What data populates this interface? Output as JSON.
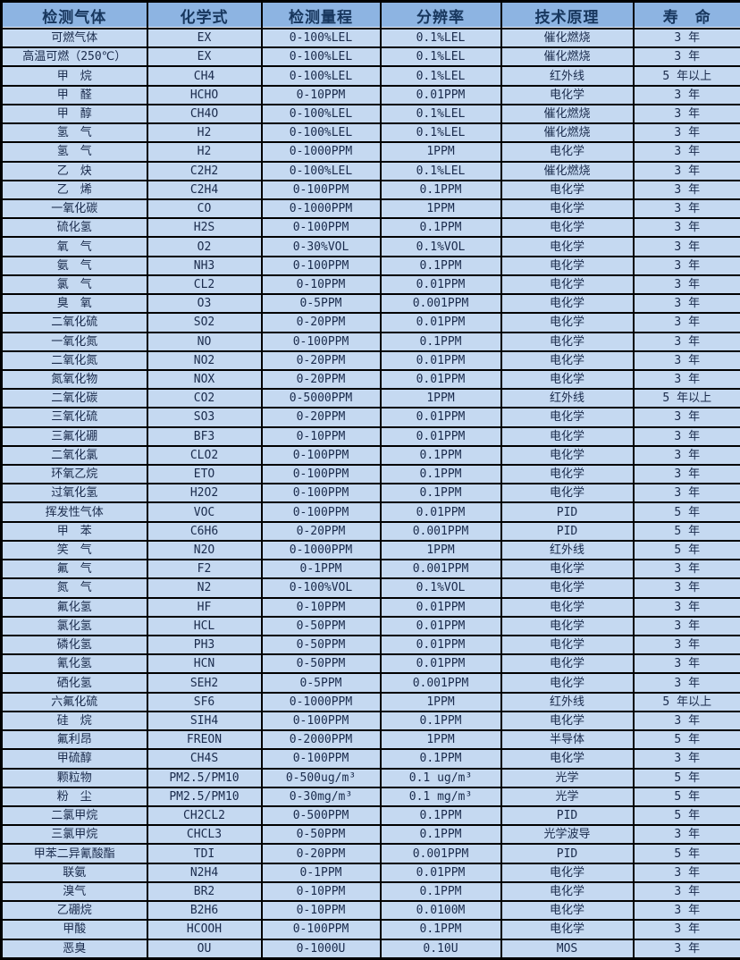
{
  "colors": {
    "header_bg": "#8db4e2",
    "row_bg": "#c5d9f1",
    "border": "#000000",
    "header_text": "#17365d",
    "cell_text": "#1a2b4c"
  },
  "chart_data": {
    "type": "table",
    "title": "",
    "columns": [
      "检测气体",
      "化学式",
      "检测量程",
      "分辨率",
      "技术原理",
      "寿　命"
    ],
    "rows": [
      [
        "可燃气体",
        "EX",
        "0-100%LEL",
        "0.1%LEL",
        "催化燃烧",
        "3 年"
      ],
      [
        "高温可燃（250℃）",
        "EX",
        "0-100%LEL",
        "0.1%LEL",
        "催化燃烧",
        "3 年"
      ],
      [
        "甲　烷",
        "CH4",
        "0-100%LEL",
        "0.1%LEL",
        "红外线",
        "5 年以上"
      ],
      [
        "甲　醛",
        "HCHO",
        "0-10PPM",
        "0.01PPM",
        "电化学",
        "3 年"
      ],
      [
        "甲　醇",
        "CH4O",
        "0-100%LEL",
        "0.1%LEL",
        "催化燃烧",
        "3 年"
      ],
      [
        "氢　气",
        "H2",
        "0-100%LEL",
        "0.1%LEL",
        "催化燃烧",
        "3 年"
      ],
      [
        "氢　气",
        "H2",
        "0-1000PPM",
        "1PPM",
        "电化学",
        "3 年"
      ],
      [
        "乙　炔",
        "C2H2",
        "0-100%LEL",
        "0.1%LEL",
        "催化燃烧",
        "3 年"
      ],
      [
        "乙　烯",
        "C2H4",
        "0-100PPM",
        "0.1PPM",
        "电化学",
        "3 年"
      ],
      [
        "一氧化碳",
        "CO",
        "0-1000PPM",
        "1PPM",
        "电化学",
        "3 年"
      ],
      [
        "硫化氢",
        "H2S",
        "0-100PPM",
        "0.1PPM",
        "电化学",
        "3 年"
      ],
      [
        "氧　气",
        "O2",
        "0-30%VOL",
        "0.1%VOL",
        "电化学",
        "3 年"
      ],
      [
        "氨　气",
        "NH3",
        "0-100PPM",
        "0.1PPM",
        "电化学",
        "3 年"
      ],
      [
        "氯　气",
        "CL2",
        "0-10PPM",
        "0.01PPM",
        "电化学",
        "3 年"
      ],
      [
        "臭　氧",
        "O3",
        "0-5PPM",
        "0.001PPM",
        "电化学",
        "3 年"
      ],
      [
        "二氧化硫",
        "SO2",
        "0-20PPM",
        "0.01PPM",
        "电化学",
        "3 年"
      ],
      [
        "一氧化氮",
        "NO",
        "0-100PPM",
        "0.1PPM",
        "电化学",
        "3 年"
      ],
      [
        "二氧化氮",
        "NO2",
        "0-20PPM",
        "0.01PPM",
        "电化学",
        "3 年"
      ],
      [
        "氮氧化物",
        "NOX",
        "0-20PPM",
        "0.01PPM",
        "电化学",
        "3 年"
      ],
      [
        "二氧化碳",
        "CO2",
        "0-5000PPM",
        "1PPM",
        "红外线",
        "5 年以上"
      ],
      [
        "三氧化硫",
        "SO3",
        "0-20PPM",
        "0.01PPM",
        "电化学",
        "3 年"
      ],
      [
        "三氟化硼",
        "BF3",
        "0-10PPM",
        "0.01PPM",
        "电化学",
        "3 年"
      ],
      [
        "二氧化氯",
        "CLO2",
        "0-100PPM",
        "0.1PPM",
        "电化学",
        "3 年"
      ],
      [
        "环氧乙烷",
        "ETO",
        "0-100PPM",
        "0.1PPM",
        "电化学",
        "3 年"
      ],
      [
        "过氧化氢",
        "H2O2",
        "0-100PPM",
        "0.1PPM",
        "电化学",
        "3 年"
      ],
      [
        "挥发性气体",
        "VOC",
        "0-100PPM",
        "0.01PPM",
        "PID",
        "5 年"
      ],
      [
        "甲　苯",
        "C6H6",
        "0-20PPM",
        "0.001PPM",
        "PID",
        "5 年"
      ],
      [
        "笑　气",
        "N2O",
        "0-1000PPM",
        "1PPM",
        "红外线",
        "5 年"
      ],
      [
        "氟　气",
        "F2",
        "0-1PPM",
        "0.001PPM",
        "电化学",
        "3 年"
      ],
      [
        "氮　气",
        "N2",
        "0-100%VOL",
        "0.1%VOL",
        "电化学",
        "3 年"
      ],
      [
        "氟化氢",
        "HF",
        "0-10PPM",
        "0.01PPM",
        "电化学",
        "3 年"
      ],
      [
        "氯化氢",
        "HCL",
        "0-50PPM",
        "0.01PPM",
        "电化学",
        "3 年"
      ],
      [
        "磷化氢",
        "PH3",
        "0-50PPM",
        "0.01PPM",
        "电化学",
        "3 年"
      ],
      [
        "氰化氢",
        "HCN",
        "0-50PPM",
        "0.01PPM",
        "电化学",
        "3 年"
      ],
      [
        "硒化氢",
        "SEH2",
        "0-5PPM",
        "0.001PPM",
        "电化学",
        "3 年"
      ],
      [
        "六氟化硫",
        "SF6",
        "0-1000PPM",
        "1PPM",
        "红外线",
        "5 年以上"
      ],
      [
        "硅　烷",
        "SIH4",
        "0-100PPM",
        "0.1PPM",
        "电化学",
        "3 年"
      ],
      [
        "氟利昂",
        "FREON",
        "0-2000PPM",
        "1PPM",
        "半导体",
        "5 年"
      ],
      [
        "甲硫醇",
        "CH4S",
        "0-100PPM",
        "0.1PPM",
        "电化学",
        "3 年"
      ],
      [
        "颗粒物",
        "PM2.5/PM10",
        "0-500ug/m³",
        "0.1 ug/m³",
        "光学",
        "5 年"
      ],
      [
        "粉　尘",
        "PM2.5/PM10",
        "0-30mg/m³",
        "0.1 mg/m³",
        "光学",
        "5 年"
      ],
      [
        "二氯甲烷",
        "CH2CL2",
        "0-500PPM",
        "0.1PPM",
        "PID",
        "5 年"
      ],
      [
        "三氯甲烷",
        "CHCL3",
        "0-50PPM",
        "0.1PPM",
        "光学波导",
        "3 年"
      ],
      [
        "甲苯二异氰酸酯",
        "TDI",
        "0-20PPM",
        "0.001PPM",
        "PID",
        "5 年"
      ],
      [
        "联氨",
        "N2H4",
        "0-1PPM",
        "0.01PPM",
        "电化学",
        "3 年"
      ],
      [
        "溴气",
        "BR2",
        "0-10PPM",
        "0.1PPM",
        "电化学",
        "3 年"
      ],
      [
        "乙硼烷",
        "B2H6",
        "0-10PPM",
        "0.0100M",
        "电化学",
        "3 年"
      ],
      [
        "甲酸",
        "HCOOH",
        "0-100PPM",
        "0.1PPM",
        "电化学",
        "3 年"
      ],
      [
        "恶臭",
        "OU",
        "0-1000U",
        "0.10U",
        "MOS",
        "3 年"
      ]
    ]
  }
}
